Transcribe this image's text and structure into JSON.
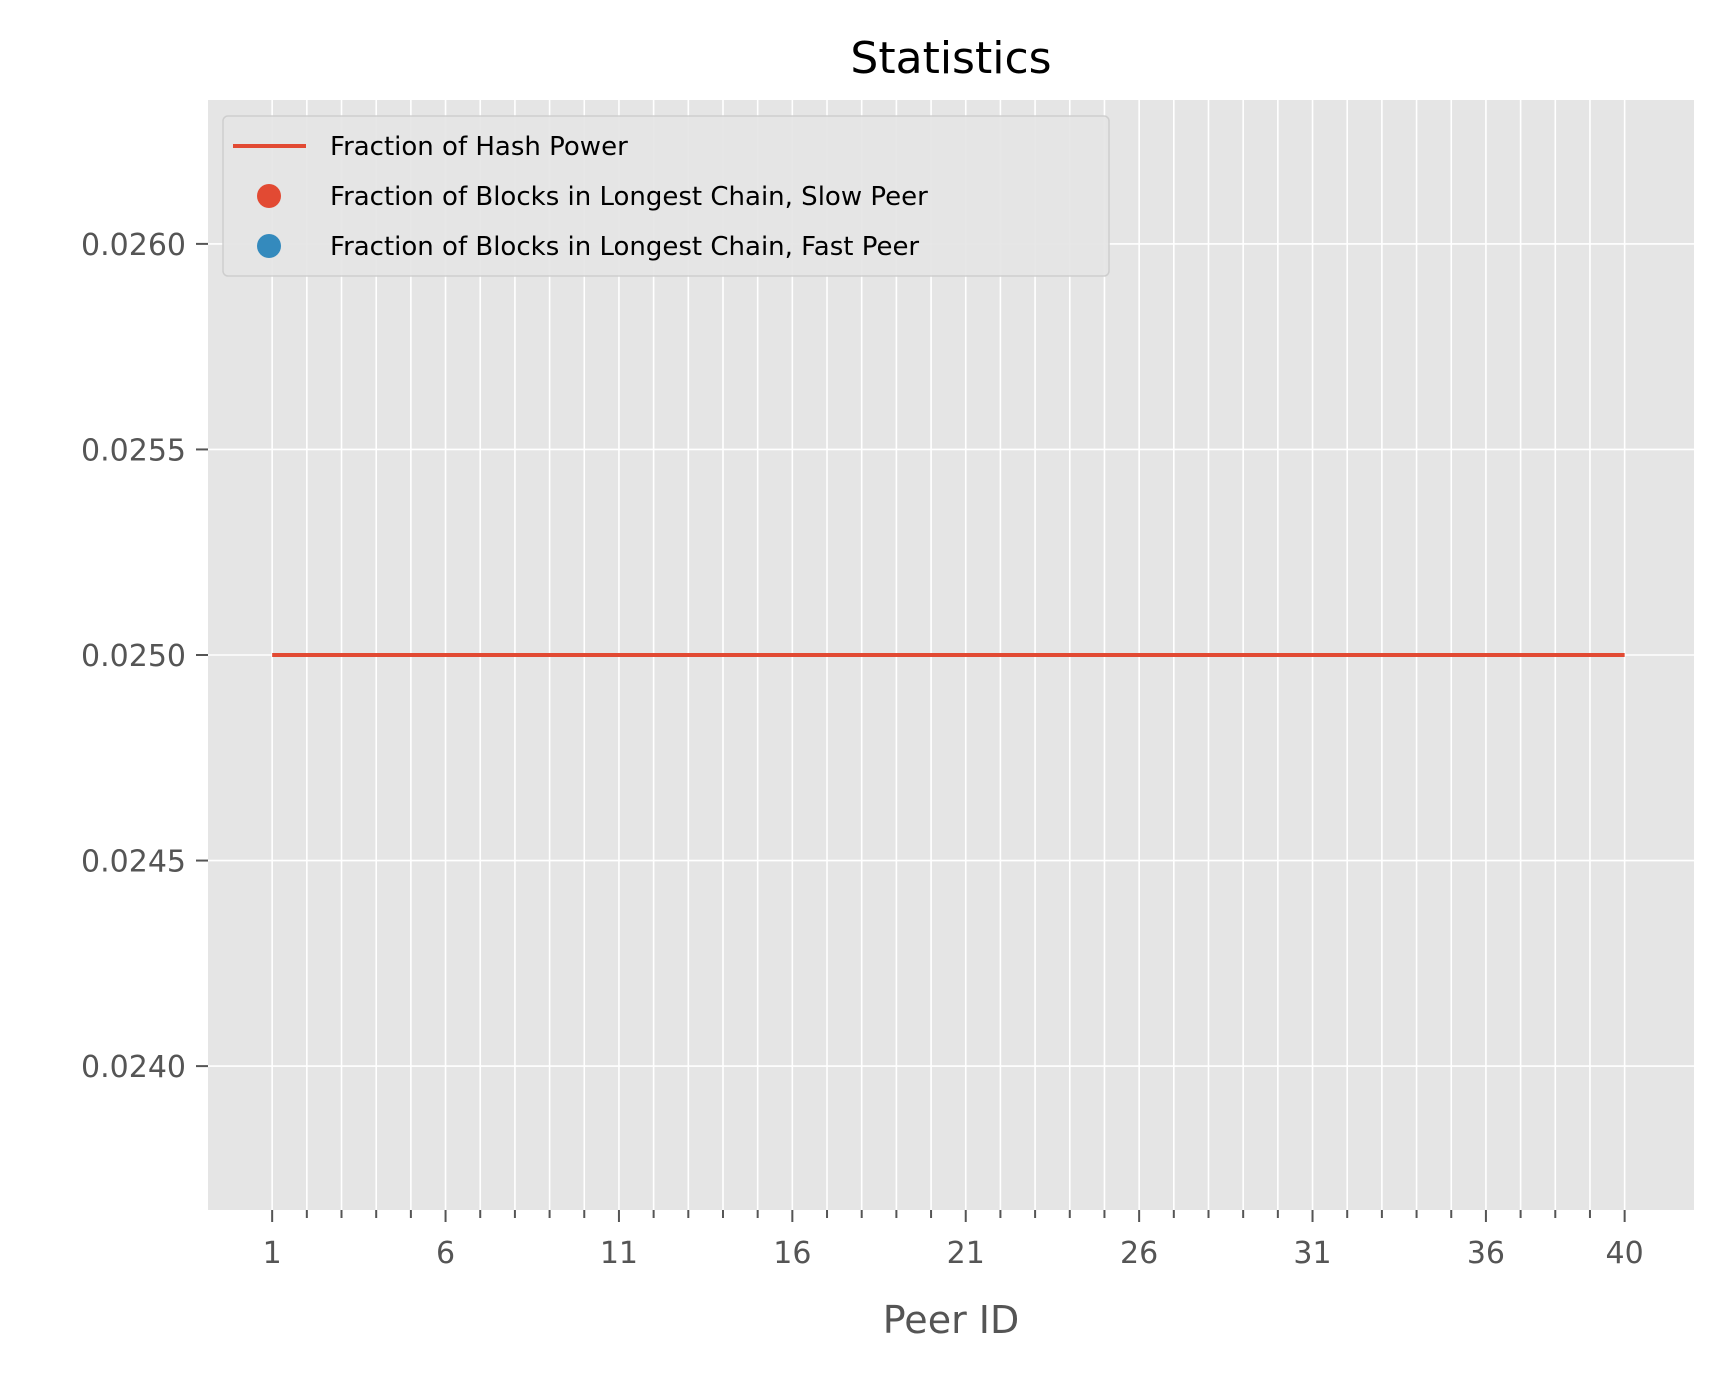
{
  "chart_data": {
    "type": "line",
    "title": "Statistics",
    "xlabel": "Peer ID",
    "ylabel": "",
    "xlim": [
      -0.85,
      42.0
    ],
    "ylim": [
      0.02365,
      0.02635
    ],
    "x_ticks_major": [
      1,
      6,
      11,
      16,
      21,
      26,
      31,
      36,
      40
    ],
    "x_ticks_minor": [
      1,
      2,
      3,
      4,
      5,
      6,
      7,
      8,
      9,
      10,
      11,
      12,
      13,
      14,
      15,
      16,
      17,
      18,
      19,
      20,
      21,
      22,
      23,
      24,
      25,
      26,
      27,
      28,
      29,
      30,
      31,
      32,
      33,
      34,
      35,
      36,
      37,
      38,
      39,
      40
    ],
    "y_ticks": [
      0.024,
      0.0245,
      0.025,
      0.0255,
      0.026
    ],
    "y_tick_labels": [
      "0.0240",
      "0.0245",
      "0.0250",
      "0.0255",
      "0.0260"
    ],
    "grid": true,
    "legend_position": "top-left",
    "series": [
      {
        "name": "Fraction of Hash Power",
        "kind": "line",
        "color": "#E24A33",
        "x": [
          1,
          40
        ],
        "y": [
          0.025,
          0.025
        ]
      },
      {
        "name": "Fraction of Blocks in Longest Chain, Slow Peer",
        "kind": "scatter",
        "color": "#E24A33",
        "x": [],
        "y": []
      },
      {
        "name": "Fraction of Blocks in Longest Chain, Fast Peer",
        "kind": "scatter",
        "color": "#348ABD",
        "x": [],
        "y": []
      }
    ]
  }
}
